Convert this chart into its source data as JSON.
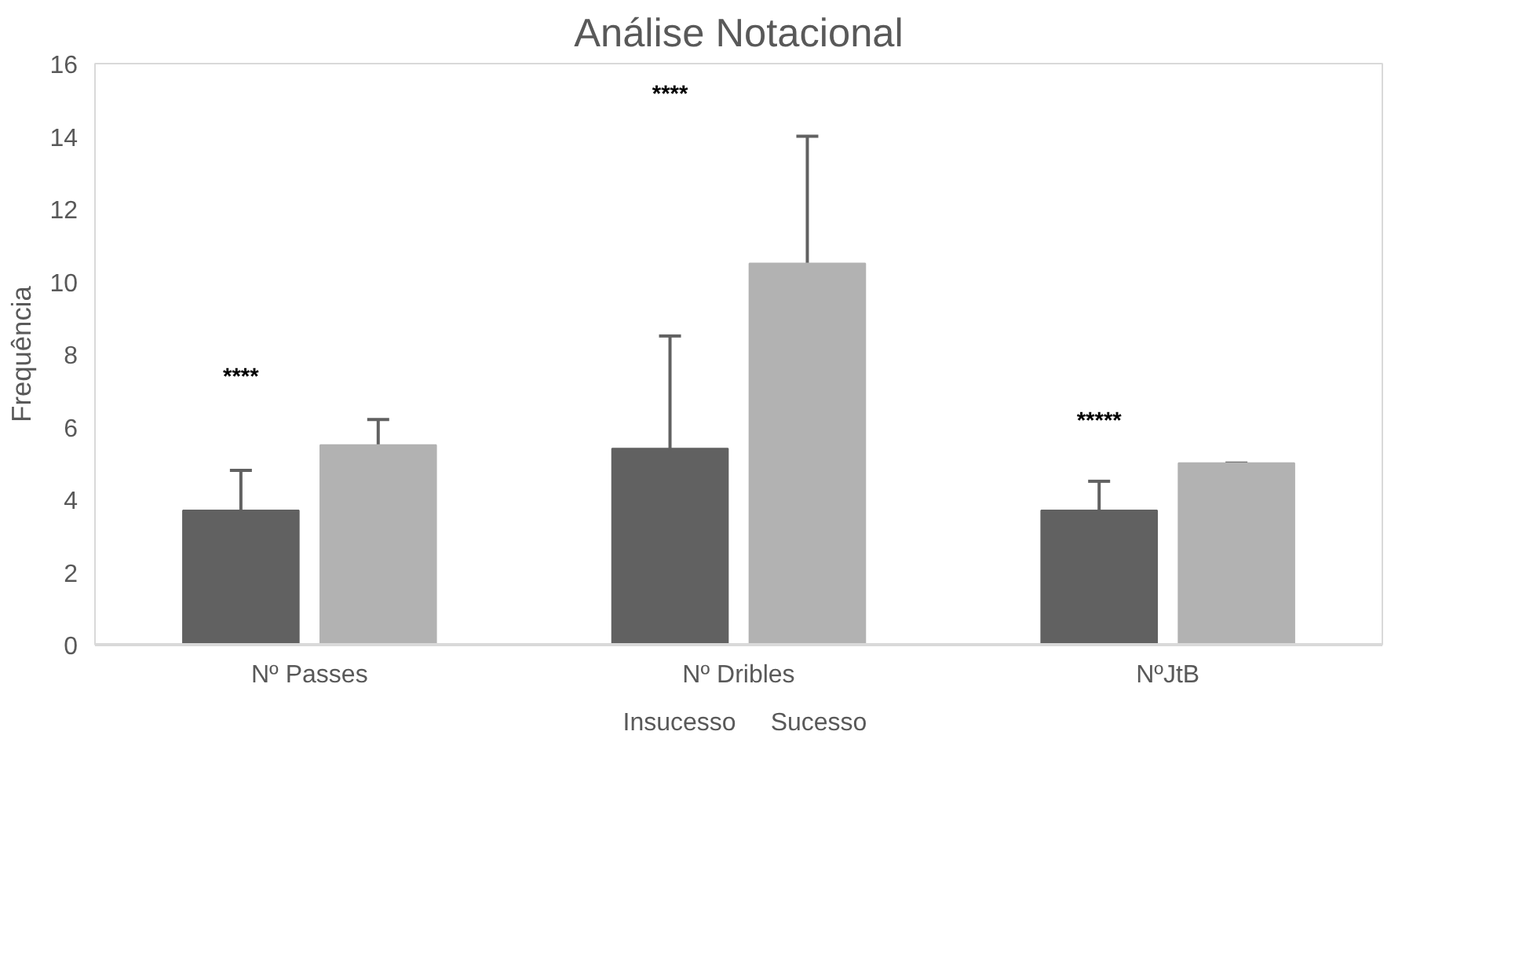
{
  "chart_data": {
    "type": "bar",
    "title": "Análise Notacional",
    "ylabel": "Frequência",
    "categories": [
      "Nº Passes",
      "Nº Dribles",
      "NºJtB"
    ],
    "series": [
      {
        "name": "Insucesso",
        "color": "#616161",
        "values": [
          3.7,
          5.4,
          3.7
        ],
        "errors": [
          [
            3.7,
            4.8
          ],
          [
            5.4,
            8.5
          ],
          [
            3.7,
            4.5
          ]
        ]
      },
      {
        "name": "Sucesso",
        "color": "#b2b2b2",
        "values": [
          5.5,
          10.5,
          5.0
        ],
        "errors": [
          [
            5.5,
            6.2
          ],
          [
            10.5,
            14.0
          ],
          [
            5.0,
            5.0
          ]
        ]
      }
    ],
    "ylim": [
      0,
      16
    ],
    "yticks": [
      0,
      2,
      4,
      6,
      8,
      10,
      12,
      14,
      16
    ],
    "grid": false,
    "legend": "bottom",
    "annotations": [
      "****",
      "****",
      "*****"
    ]
  }
}
